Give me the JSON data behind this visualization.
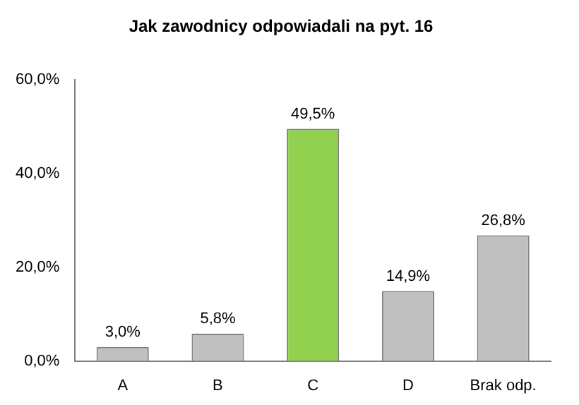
{
  "chart_data": {
    "type": "bar",
    "title": "Jak zawodnicy odpowiadali na pyt. 16",
    "categories": [
      "A",
      "B",
      "C",
      "D",
      "Brak odp."
    ],
    "values": [
      3.0,
      5.8,
      49.5,
      14.9,
      26.8
    ],
    "colors": [
      "#c0c0c0",
      "#c0c0c0",
      "#92d050",
      "#c0c0c0",
      "#c0c0c0"
    ],
    "value_labels": [
      "3,0%",
      "5,8%",
      "49,5%",
      "14,9%",
      "26,8%"
    ],
    "ylim": [
      0,
      60
    ],
    "yticks": [
      {
        "value": 0,
        "label": "0,0%"
      },
      {
        "value": 20,
        "label": "20,0%"
      },
      {
        "value": 40,
        "label": "40,0%"
      },
      {
        "value": 60,
        "label": "60,0%"
      }
    ],
    "grid": false,
    "legend": false
  }
}
